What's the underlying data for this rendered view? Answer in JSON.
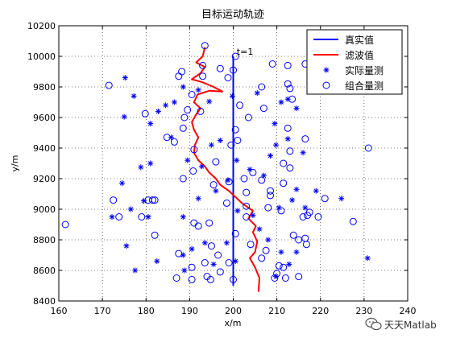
{
  "chart_data": {
    "type": "scatter",
    "title": "目标运动轨迹",
    "xlabel": "x/m",
    "ylabel": "y/m",
    "xlim": [
      160,
      240
    ],
    "ylim": [
      8400,
      10200
    ],
    "xticks": [
      160,
      170,
      180,
      190,
      200,
      210,
      220,
      230,
      240
    ],
    "yticks": [
      8400,
      8600,
      8800,
      9000,
      9200,
      9400,
      9600,
      9800,
      10000,
      10200
    ],
    "grid": true,
    "legend_position": "top-right",
    "annotation": {
      "text": "t=1",
      "x": 200.8,
      "y": 10010
    },
    "series": [
      {
        "name": "真实值",
        "marker": "line",
        "color": "#0000ff",
        "points": [
          [
            200,
            8500
          ],
          [
            200,
            10000
          ]
        ]
      },
      {
        "name": "滤波值",
        "marker": "line",
        "color": "#ff0000",
        "points": [
          [
            205.8,
            8460
          ],
          [
            206.0,
            8550
          ],
          [
            205.0,
            8620
          ],
          [
            203.8,
            8680
          ],
          [
            205.0,
            8720
          ],
          [
            205.5,
            8790
          ],
          [
            204.5,
            8850
          ],
          [
            205.2,
            8890
          ],
          [
            203.5,
            8940
          ],
          [
            204.5,
            8990
          ],
          [
            202.0,
            9040
          ],
          [
            200.5,
            9080
          ],
          [
            199.0,
            9120
          ],
          [
            197.0,
            9160
          ],
          [
            196.0,
            9200
          ],
          [
            194.5,
            9240
          ],
          [
            193.5,
            9280
          ],
          [
            192.0,
            9320
          ],
          [
            191.0,
            9370
          ],
          [
            191.2,
            9420
          ],
          [
            192.0,
            9470
          ],
          [
            191.0,
            9520
          ],
          [
            190.5,
            9570
          ],
          [
            191.5,
            9620
          ],
          [
            192.5,
            9660
          ],
          [
            191.0,
            9700
          ],
          [
            191.8,
            9750
          ],
          [
            194.5,
            9775
          ],
          [
            197.5,
            9770
          ],
          [
            195.5,
            9800
          ],
          [
            193.0,
            9830
          ],
          [
            190.5,
            9850
          ],
          [
            192.5,
            9890
          ],
          [
            193.5,
            9930
          ],
          [
            191.5,
            9960
          ],
          [
            193.0,
            10000
          ],
          [
            193.5,
            10060
          ]
        ]
      },
      {
        "name": "实际量测",
        "marker": "star",
        "color": "#0000ff",
        "points": [
          [
            175.2,
            9860
          ],
          [
            177.2,
            9740
          ],
          [
            175.0,
            9605
          ],
          [
            181.0,
            9560
          ],
          [
            184.5,
            9680
          ],
          [
            185.8,
            9470
          ],
          [
            182.8,
            9640
          ],
          [
            181.0,
            9300
          ],
          [
            178.8,
            9275
          ],
          [
            174.5,
            9170
          ],
          [
            179.5,
            9055
          ],
          [
            176.5,
            9000
          ],
          [
            172.2,
            8950
          ],
          [
            180.5,
            8950
          ],
          [
            175.5,
            8760
          ],
          [
            177.5,
            8600
          ],
          [
            182.5,
            8660
          ],
          [
            188.5,
            8700
          ],
          [
            188.8,
            8600
          ],
          [
            190.5,
            8740
          ],
          [
            193.5,
            8780
          ],
          [
            198.5,
            8780
          ],
          [
            200.5,
            8660
          ],
          [
            195.5,
            8640
          ],
          [
            188.5,
            8950
          ],
          [
            192.0,
            9070
          ],
          [
            196.0,
            9120
          ],
          [
            198.8,
            9190
          ],
          [
            200.8,
            9320
          ],
          [
            197.0,
            9450
          ],
          [
            195.0,
            9420
          ],
          [
            192.8,
            9280
          ],
          [
            189.5,
            9320
          ],
          [
            186.5,
            9700
          ],
          [
            188.5,
            9800
          ],
          [
            192.0,
            9780
          ],
          [
            194.5,
            9705
          ],
          [
            199.8,
            9740
          ],
          [
            205.5,
            9760
          ],
          [
            211.0,
            9700
          ],
          [
            212.5,
            9720
          ],
          [
            214.5,
            9660
          ],
          [
            209.5,
            9560
          ],
          [
            212.5,
            9460
          ],
          [
            209.8,
            9420
          ],
          [
            216.0,
            9370
          ],
          [
            208.5,
            9350
          ],
          [
            203.8,
            9260
          ],
          [
            207.0,
            9220
          ],
          [
            214.5,
            9130
          ],
          [
            219.0,
            9120
          ],
          [
            213.5,
            9060
          ],
          [
            216.5,
            9010
          ],
          [
            210.5,
            9010
          ],
          [
            204.5,
            8960
          ],
          [
            201.0,
            8990
          ],
          [
            206.0,
            8870
          ],
          [
            208.0,
            8800
          ],
          [
            211.0,
            8720
          ],
          [
            212.8,
            8640
          ],
          [
            214.5,
            8720
          ],
          [
            209.8,
            8560
          ],
          [
            224.8,
            9070
          ],
          [
            230.8,
            8680
          ]
        ]
      },
      {
        "name": "组合量测",
        "marker": "circle",
        "color": "#0000ff",
        "points": [
          [
            193.5,
            10070
          ],
          [
            188.2,
            9900
          ],
          [
            171.5,
            9810
          ],
          [
            179.8,
            9625
          ],
          [
            184.8,
            9470
          ],
          [
            187.5,
            9870
          ],
          [
            193.0,
            9870
          ],
          [
            190.5,
            9750
          ],
          [
            189.5,
            9650
          ],
          [
            188.8,
            9600
          ],
          [
            192.5,
            9640
          ],
          [
            186.5,
            9440
          ],
          [
            191.0,
            9390
          ],
          [
            188.5,
            9530
          ],
          [
            182.0,
            9060
          ],
          [
            180.5,
            9060
          ],
          [
            181.5,
            9060
          ],
          [
            172.5,
            9060
          ],
          [
            173.8,
            8950
          ],
          [
            179.0,
            8950
          ],
          [
            161.5,
            8900
          ],
          [
            182.0,
            8830
          ],
          [
            187.5,
            8710
          ],
          [
            191.0,
            8910
          ],
          [
            192.0,
            8890
          ],
          [
            187.0,
            8550
          ],
          [
            190.5,
            8620
          ],
          [
            194.0,
            8560
          ],
          [
            194.8,
            8540
          ],
          [
            196.5,
            8700
          ],
          [
            195.0,
            8760
          ],
          [
            199.0,
            8650
          ],
          [
            200.5,
            8840
          ],
          [
            203.0,
            8950
          ],
          [
            204.0,
            8770
          ],
          [
            206.5,
            8680
          ],
          [
            207.5,
            8730
          ],
          [
            210.0,
            8580
          ],
          [
            211.5,
            8620
          ],
          [
            209.5,
            8550
          ],
          [
            215.0,
            8800
          ],
          [
            216.5,
            8810
          ],
          [
            216.8,
            8770
          ],
          [
            213.8,
            8830
          ],
          [
            217.5,
            8980
          ],
          [
            217.0,
            8960
          ],
          [
            211.0,
            8990
          ],
          [
            208.0,
            9010
          ],
          [
            208.5,
            9120
          ],
          [
            203.0,
            9110
          ],
          [
            202.5,
            9200
          ],
          [
            204.5,
            9240
          ],
          [
            206.5,
            9190
          ],
          [
            213.0,
            9270
          ],
          [
            211.5,
            9170
          ],
          [
            208.5,
            9090
          ],
          [
            203.0,
            9020
          ],
          [
            199.0,
            9180
          ],
          [
            195.5,
            9160
          ],
          [
            199.5,
            9420
          ],
          [
            201.0,
            9450
          ],
          [
            200.5,
            9520
          ],
          [
            201.5,
            9680
          ],
          [
            203.5,
            9600
          ],
          [
            206.5,
            9800
          ],
          [
            212.5,
            9820
          ],
          [
            213.0,
            9790
          ],
          [
            213.5,
            9720
          ],
          [
            207.0,
            9660
          ],
          [
            212.5,
            9530
          ],
          [
            216.5,
            9460
          ],
          [
            213.0,
            9380
          ],
          [
            211.5,
            9300
          ],
          [
            221.0,
            9070
          ],
          [
            227.5,
            8920
          ],
          [
            231.0,
            9400
          ],
          [
            188.5,
            9200
          ],
          [
            190.8,
            9250
          ],
          [
            196.0,
            9310
          ],
          [
            198.5,
            9040
          ],
          [
            194.5,
            8910
          ],
          [
            193.5,
            8650
          ],
          [
            190.5,
            8540
          ],
          [
            197.0,
            8590
          ],
          [
            200.0,
            8540
          ],
          [
            210.5,
            8630
          ],
          [
            212.0,
            8550
          ],
          [
            215.0,
            8560
          ],
          [
            216.0,
            8950
          ],
          [
            219.5,
            8950
          ],
          [
            200.0,
            9910
          ],
          [
            198.8,
            9860
          ],
          [
            197.0,
            9920
          ],
          [
            209.0,
            9950
          ],
          [
            216.5,
            9950
          ],
          [
            212.5,
            9940
          ],
          [
            193.0,
            9940
          ],
          [
            200.5,
            10000
          ]
        ]
      }
    ]
  },
  "watermark": {
    "text": "天天Matlab",
    "icon": "wechat-icon"
  },
  "colors": {
    "true_line": "#0000ff",
    "filter_line": "#ff0000",
    "markers": "#0000ff"
  }
}
